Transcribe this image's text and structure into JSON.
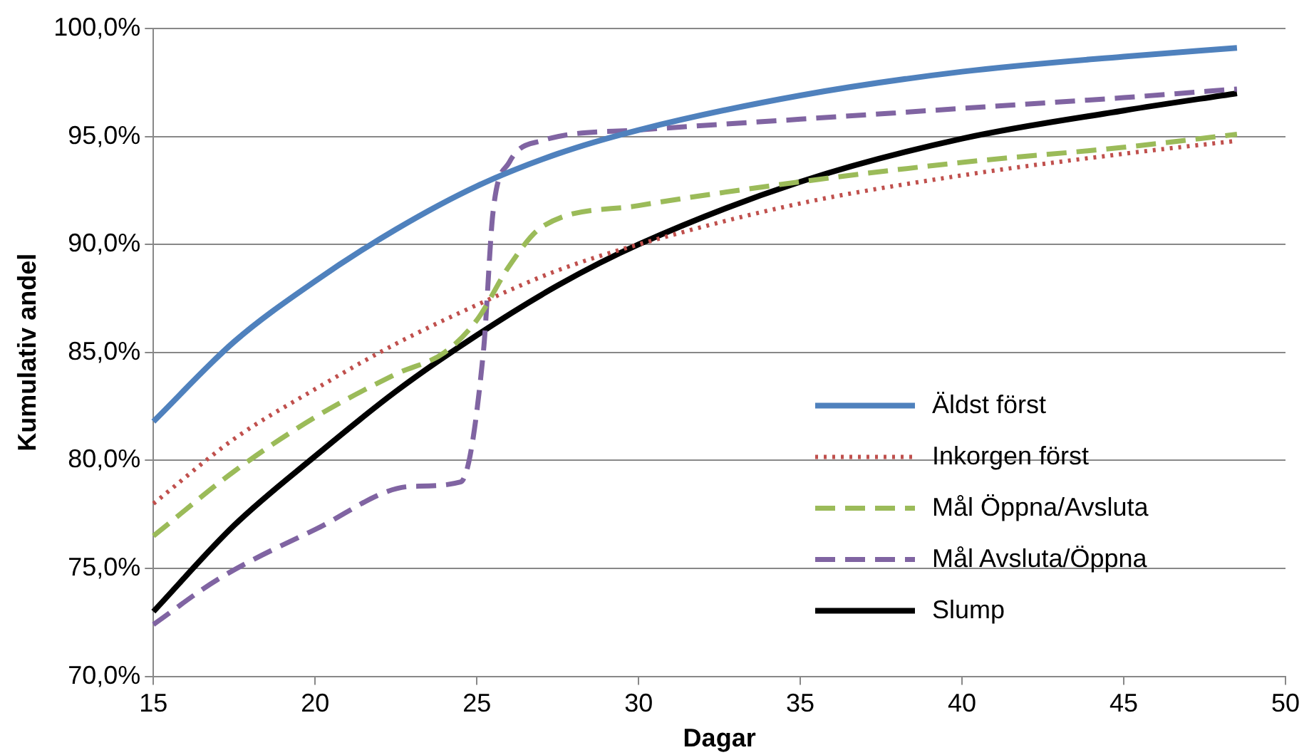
{
  "chart_data": {
    "type": "line",
    "xlabel": "Dagar",
    "ylabel": "Kumulativ andel",
    "xlim": [
      15,
      50
    ],
    "xticks": [
      15,
      20,
      25,
      30,
      35,
      40,
      45,
      50
    ],
    "ylim": [
      70,
      100
    ],
    "yticks": [
      {
        "value": 70,
        "label": "70,0%"
      },
      {
        "value": 75,
        "label": "75,0%"
      },
      {
        "value": 80,
        "label": "80,0%"
      },
      {
        "value": 85,
        "label": "85,0%"
      },
      {
        "value": 90,
        "label": "90,0%"
      },
      {
        "value": 95,
        "label": "95,0%"
      },
      {
        "value": 100,
        "label": "100,0%"
      }
    ],
    "grid": "y",
    "legend": "right",
    "marker": "none",
    "series": [
      {
        "name": "Äldst först",
        "color": "#4f81bd",
        "line_style": "solid",
        "x": [
          15,
          17.5,
          20,
          22.5,
          25,
          27.5,
          30,
          35,
          40,
          45,
          48.5
        ],
        "values": [
          81.8,
          85.5,
          88.3,
          90.7,
          92.7,
          94.2,
          95.3,
          96.9,
          98.0,
          98.7,
          99.1
        ]
      },
      {
        "name": "Inkorgen först",
        "color": "#c0504d",
        "line_style": "dotted",
        "x": [
          15,
          17.5,
          20,
          22.5,
          25,
          27.5,
          30,
          35,
          40,
          45,
          48.5
        ],
        "values": [
          78.0,
          81.0,
          83.3,
          85.4,
          87.2,
          88.8,
          90.0,
          91.9,
          93.2,
          94.2,
          94.8
        ]
      },
      {
        "name": "Mål Öppna/Avsluta",
        "color": "#9bbb59",
        "line_style": "dashed",
        "x": [
          15,
          17.5,
          20,
          22.5,
          24,
          25,
          26,
          27,
          30,
          35,
          40,
          45,
          48.5
        ],
        "values": [
          76.5,
          79.5,
          82.0,
          84.0,
          85.0,
          86.5,
          89.0,
          90.8,
          91.8,
          92.9,
          93.8,
          94.5,
          95.1
        ]
      },
      {
        "name": "Mål Avsluta/Öppna",
        "color": "#8064a2",
        "line_style": "dashed",
        "x": [
          15,
          17,
          20,
          23,
          24.5,
          25.2,
          25.5,
          26,
          27,
          30,
          35,
          40,
          45,
          48.5
        ],
        "values": [
          72.4,
          74.5,
          76.8,
          78.8,
          79.0,
          85.0,
          91.5,
          93.8,
          94.8,
          95.3,
          95.8,
          96.3,
          96.8,
          97.2
        ]
      },
      {
        "name": "Slump",
        "color": "#000000",
        "line_style": "solid",
        "x": [
          15,
          17.5,
          20,
          22.5,
          25,
          27.5,
          30,
          35,
          40,
          45,
          48.5
        ],
        "values": [
          73.0,
          77.0,
          80.2,
          83.2,
          85.8,
          88.1,
          90.0,
          92.9,
          94.9,
          96.2,
          97.0
        ]
      }
    ]
  }
}
